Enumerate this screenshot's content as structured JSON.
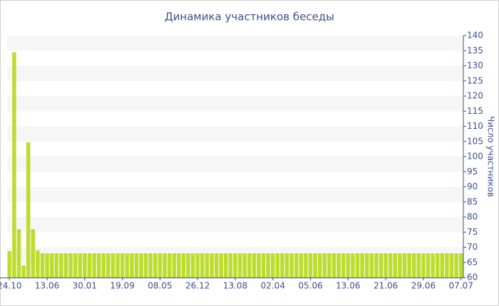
{
  "chart_data": {
    "type": "bar",
    "title": "Динамика участников беседы",
    "y_axis_label": "Число участников",
    "categories": [
      "24.10",
      null,
      null,
      null,
      null,
      null,
      null,
      null,
      "13.06",
      null,
      null,
      null,
      null,
      null,
      null,
      null,
      "30.01",
      null,
      null,
      null,
      null,
      null,
      null,
      null,
      "19.09",
      null,
      null,
      null,
      null,
      null,
      null,
      null,
      "08.05",
      null,
      null,
      null,
      null,
      null,
      null,
      null,
      "26.12",
      null,
      null,
      null,
      null,
      null,
      null,
      null,
      "13.08",
      null,
      null,
      null,
      null,
      null,
      null,
      null,
      "02.04",
      null,
      null,
      null,
      null,
      null,
      null,
      null,
      "05.06",
      null,
      null,
      null,
      null,
      null,
      null,
      null,
      "13.06",
      null,
      null,
      null,
      null,
      null,
      null,
      null,
      "21.06",
      null,
      null,
      null,
      null,
      null,
      null,
      null,
      "29.06",
      null,
      null,
      null,
      null,
      null,
      null,
      null,
      "07.07"
    ],
    "values": [
      68.7,
      134.5,
      76,
      64,
      104.7,
      76,
      69,
      68,
      68,
      68,
      68,
      68,
      68,
      68,
      68,
      68,
      68,
      68,
      68,
      68,
      68,
      68,
      68,
      68,
      68,
      68,
      68,
      68,
      68,
      68,
      68,
      68,
      68,
      68,
      68,
      68,
      68,
      68,
      68,
      68,
      68,
      68,
      68,
      68,
      68,
      68,
      68,
      68,
      68,
      68,
      68,
      68,
      68,
      68,
      68,
      68,
      68,
      68,
      68,
      68,
      68,
      68,
      68,
      68,
      68,
      68,
      68,
      68,
      68,
      68,
      68,
      68,
      68,
      68,
      68,
      68,
      68,
      68,
      68,
      68,
      68,
      68,
      68,
      68,
      68,
      68,
      68,
      68,
      68,
      68,
      68,
      68,
      68,
      68,
      68,
      68,
      68
    ],
    "color": "#bddc2f",
    "ylim": [
      60,
      140
    ],
    "yticks": [
      60,
      65,
      70,
      75,
      80,
      85,
      90,
      95,
      100,
      105,
      110,
      115,
      120,
      125,
      130,
      135,
      140
    ],
    "grid": true
  }
}
